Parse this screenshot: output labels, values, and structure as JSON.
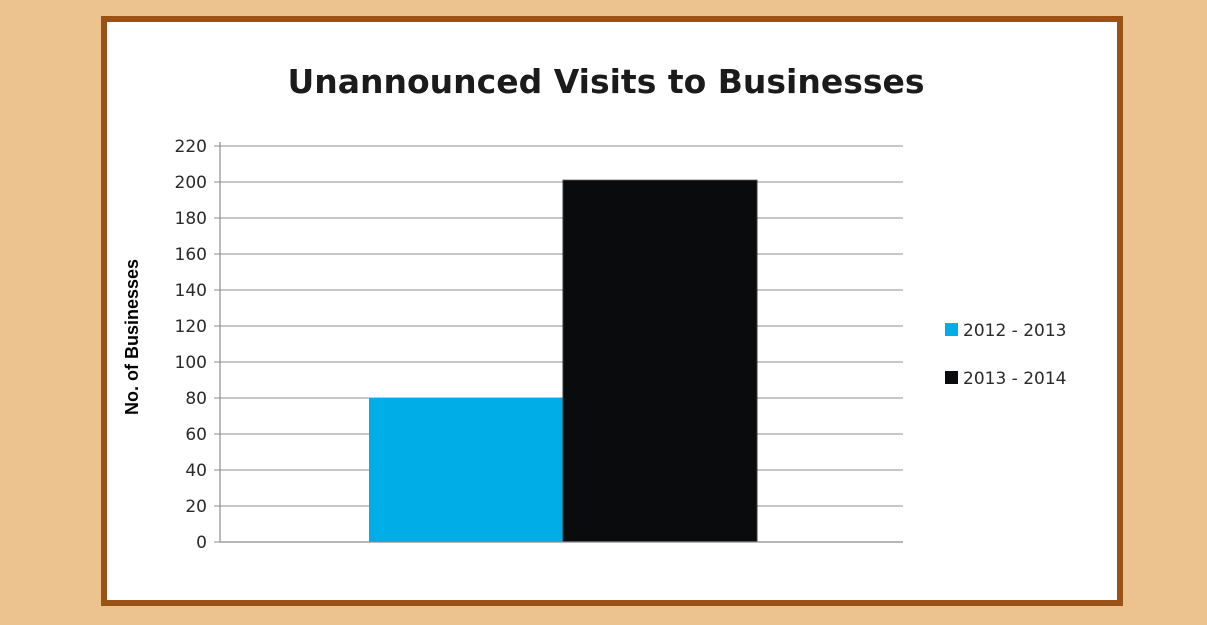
{
  "chart_data": {
    "type": "bar",
    "title": "Unannounced Visits to Businesses",
    "ylabel": "No. of Businesses",
    "xlabel": "",
    "categories": [
      ""
    ],
    "series": [
      {
        "name": "2012 - 2013",
        "values": [
          80
        ],
        "color": "#00ade6"
      },
      {
        "name": "2013 - 2014",
        "values": [
          201
        ],
        "color": "#0a0b0d"
      }
    ],
    "ylim": [
      0,
      220
    ],
    "yticks": [
      0,
      20,
      40,
      60,
      80,
      100,
      120,
      140,
      160,
      180,
      200,
      220
    ],
    "grid": true,
    "legend_position": "right"
  },
  "colors": {
    "background": "#ecc28e",
    "frame_border": "#9a5216",
    "panel": "#ffffff",
    "gridline": "#a6a6a6"
  }
}
